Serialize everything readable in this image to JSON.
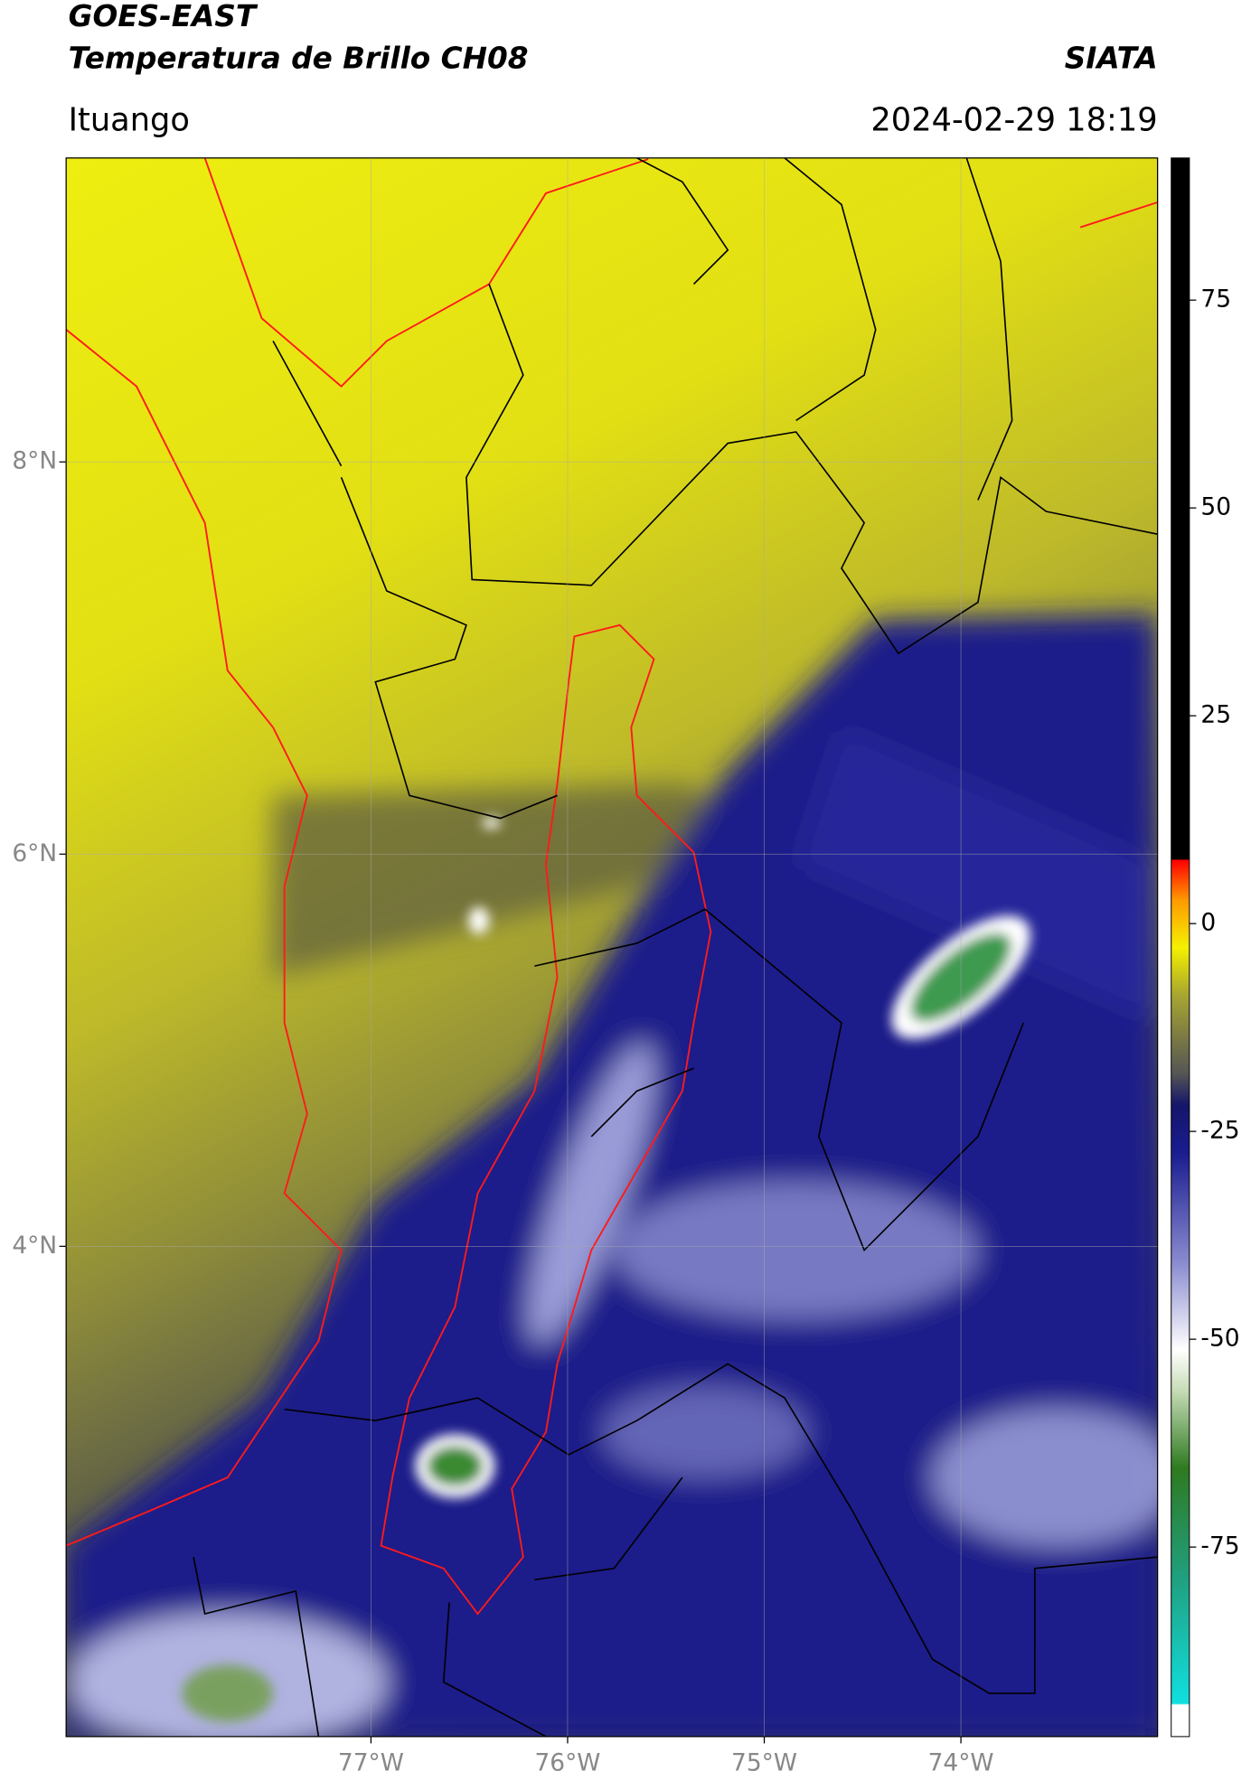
{
  "header": {
    "satellite": "GOES-EAST",
    "product": "Temperatura de Brillo CH08",
    "agency": "SIATA",
    "region": "Ituango",
    "timestamp": "2024-02-29 18:19"
  },
  "map": {
    "lonlim": [
      -78.55,
      -73.0
    ],
    "latlim": [
      1.5,
      9.55
    ],
    "lonticks": [
      {
        "value": -77,
        "label": "77°W"
      },
      {
        "value": -76,
        "label": "76°W"
      },
      {
        "value": -75,
        "label": "75°W"
      },
      {
        "value": -74,
        "label": "74°W"
      }
    ],
    "latticks": [
      {
        "value": 8,
        "label": "8°N"
      },
      {
        "value": 6,
        "label": "6°N"
      },
      {
        "value": 4,
        "label": "4°N"
      }
    ],
    "grid": true
  },
  "colorbar": {
    "lim": [
      -97.8,
      92.1
    ],
    "ticks": [
      75,
      50,
      25,
      0,
      -25,
      -50,
      -75
    ]
  }
}
